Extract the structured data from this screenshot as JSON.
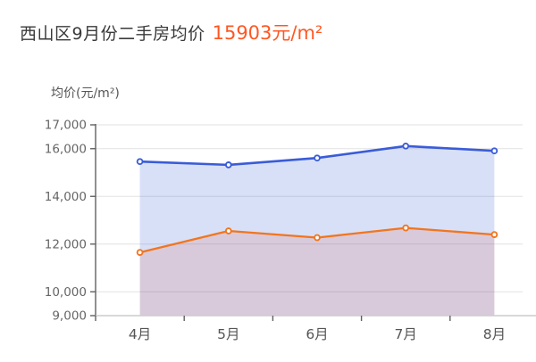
{
  "header": {
    "title": "西山区9月份二手房均价",
    "highlight_value": "15903元/m²",
    "title_color": "#3a3a3a",
    "highlight_color": "#ff5722"
  },
  "chart_data": {
    "type": "area",
    "title": "西山区9月份二手房均价 15903元/m²",
    "y_axis_name": "均价(元/m²)",
    "xlabel": "",
    "ylabel": "均价(元/m²)",
    "categories": [
      "4月",
      "5月",
      "6月",
      "7月",
      "8月"
    ],
    "series": [
      {
        "name": "blue",
        "color": "#3a5cd8",
        "fill": "rgba(61,98,217,0.20)",
        "values": [
          15460,
          15320,
          15610,
          16110,
          15910
        ]
      },
      {
        "name": "orange",
        "color": "#f2751f",
        "fill": "rgba(215,85,70,0.16)",
        "values": [
          11650,
          12550,
          12270,
          12680,
          12400
        ]
      }
    ],
    "y_ticks": [
      9000,
      10000,
      12000,
      14000,
      16000,
      17000
    ],
    "ylim": [
      9000,
      17000
    ],
    "grid": true,
    "legend": "none",
    "gridline_color": "#e2e2e2",
    "y_axis_line_color": "#606060",
    "x_axis_line_color": "#cccccc",
    "tick_color": "#606060",
    "y_label_color": "#666666",
    "x_label_color": "#555555"
  }
}
